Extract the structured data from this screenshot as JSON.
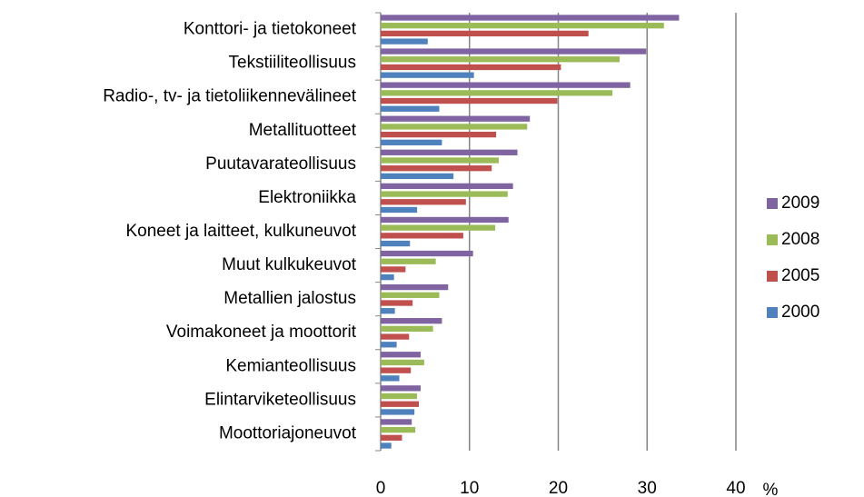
{
  "chart_data": {
    "type": "hbar",
    "x_label": "%",
    "categories": [
      "Konttori- ja tietokoneet",
      "Tekstiiliteollisuus",
      "Radio-, tv- ja tietoliikennevälineet",
      "Metallituotteet",
      "Puutavarateollisuus",
      "Elektroniikka",
      "Koneet ja laitteet, kulkuneuvot",
      "Muut kulkukeuvot",
      "Metallien jalostus",
      "Voimakoneet ja moottorit",
      "Kemianteollisuus",
      "Elintarviketeollisuus",
      "Moottoriajoneuvot"
    ],
    "series": [
      {
        "name": "2009",
        "color": "#8064a2",
        "values": [
          33.6,
          29.9,
          28.1,
          16.8,
          15.4,
          14.9,
          14.4,
          10.4,
          7.6,
          6.9,
          4.5,
          4.5,
          3.5
        ]
      },
      {
        "name": "2008",
        "color": "#9bbb59",
        "values": [
          31.9,
          26.9,
          26.1,
          16.5,
          13.3,
          14.3,
          12.9,
          6.2,
          6.6,
          5.9,
          4.9,
          4.1,
          3.9
        ]
      },
      {
        "name": "2005",
        "color": "#c0504d",
        "values": [
          23.4,
          20.3,
          19.9,
          13.0,
          12.5,
          9.6,
          9.3,
          2.8,
          3.6,
          3.2,
          3.4,
          4.3,
          2.4
        ]
      },
      {
        "name": "2000",
        "color": "#4f81bd",
        "values": [
          5.3,
          10.5,
          6.6,
          6.9,
          8.2,
          4.1,
          3.3,
          1.5,
          1.6,
          1.8,
          2.1,
          3.8,
          1.2
        ]
      }
    ],
    "xlim": [
      0,
      40
    ],
    "xticks": [
      0,
      10,
      20,
      30,
      40
    ],
    "grid": true,
    "legend": "right"
  }
}
